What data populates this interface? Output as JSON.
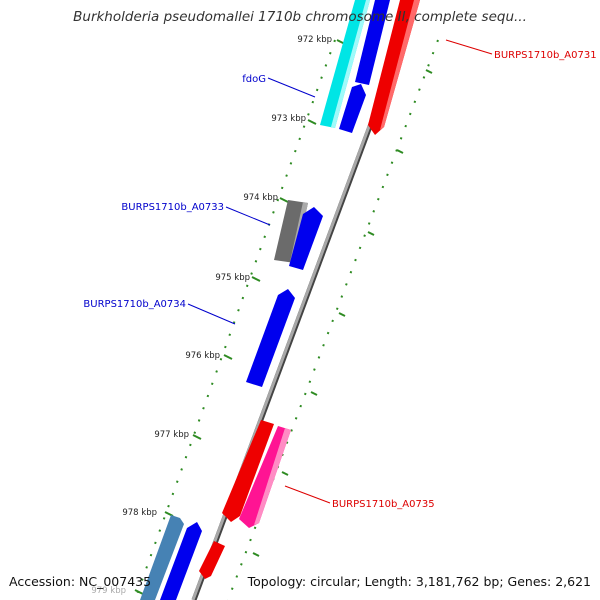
{
  "header": {
    "title": "Burkholderia pseudomallei 1710b chromosome II, complete sequ..."
  },
  "footer": {
    "accession": "Accession: NC_007435",
    "topology": "Topology: circular; Length: 3,181,762 bp; Genes: 2,621"
  },
  "colors": {
    "backbone": "#888888",
    "forward_strand": "#0000ee",
    "reverse_strand": "#ff0000",
    "rna_cyan": "#00e5e5",
    "gray_feature": "#707070",
    "pink_feature": "#ff1493",
    "steel_feature": "#4682b4",
    "tick_green": "#2e8b22",
    "label_blue": "#0000cc",
    "label_red": "#dd0000"
  },
  "ticks": [
    {
      "label": "972 kbp"
    },
    {
      "label": "973 kbp"
    },
    {
      "label": "974 kbp"
    },
    {
      "label": "975 kbp"
    },
    {
      "label": "976 kbp"
    },
    {
      "label": "977 kbp"
    },
    {
      "label": "978 kbp"
    },
    {
      "label": "979 kbp"
    }
  ],
  "gene_labels": [
    {
      "text": "fdoG"
    },
    {
      "text": "BURPS1710b_A0733"
    },
    {
      "text": "BURPS1710b_A0734"
    },
    {
      "text": "BURPS1710b_A0731"
    },
    {
      "text": "BURPS1710b_A0735"
    }
  ]
}
